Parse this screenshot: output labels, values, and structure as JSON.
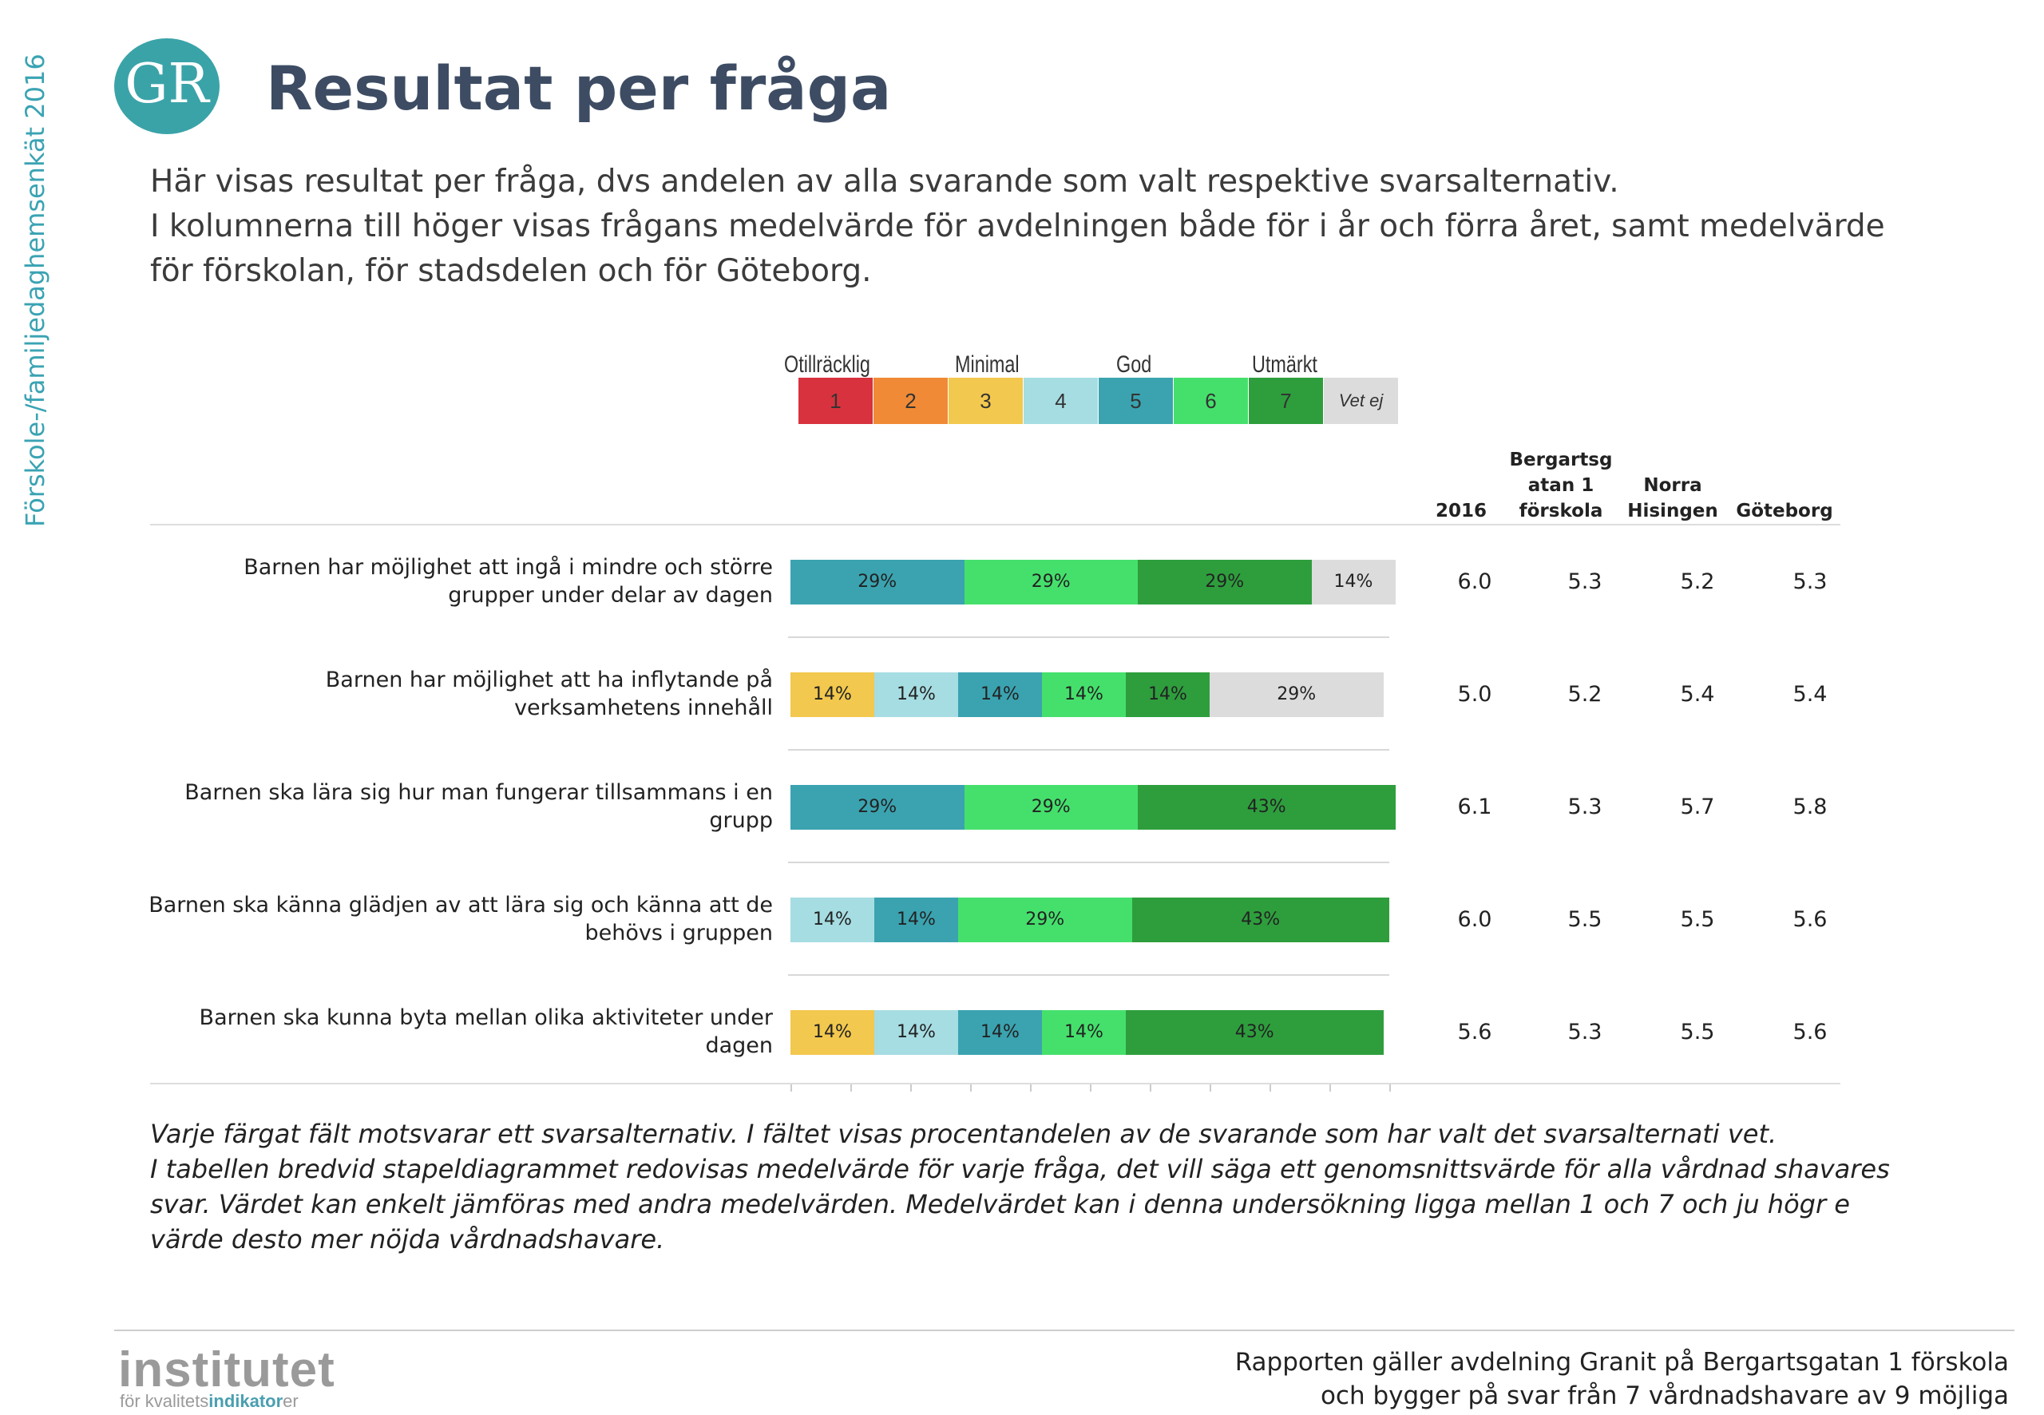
{
  "side_label": "Förskole-/familjedaghemsenkät 2016",
  "logo": "GR",
  "title": "Resultat per fråga",
  "intro": [
    "Här visas resultat per fråga, dvs andelen av alla svarande som valt respektive svarsalternativ.",
    "I kolumnerna till höger visas frågans medelvärde för avdelningen både för i år och förra året, samt medelvärde",
    "för förskolan, för stadsdelen och för Göteborg."
  ],
  "scale": {
    "labels": [
      "Otillräcklig",
      "Minimal",
      "God",
      "Utmärkt"
    ],
    "options": [
      "1",
      "2",
      "3",
      "4",
      "5",
      "6",
      "7",
      "Vet ej"
    ],
    "colors": [
      "#d7323e",
      "#f08a36",
      "#f2c84e",
      "#a6dde2",
      "#3ba3b0",
      "#45e06c",
      "#2e9e3d",
      "#dcdcdc"
    ]
  },
  "columns": [
    "2016",
    "Bergartsgatan 1 förskola",
    "Norra Hisingen",
    "Göteborg"
  ],
  "column_display": [
    [
      "2016"
    ],
    [
      "Bergartsg",
      "atan 1",
      "förskola"
    ],
    [
      "Norra",
      "Hisingen"
    ],
    [
      "Göteborg"
    ]
  ],
  "chart_data": {
    "type": "bar",
    "stacked": true,
    "orientation": "horizontal",
    "categories": [
      "Barnen har möjlighet att ingå i mindre och större grupper under delar av dagen",
      "Barnen har möjlighet att ha inflytande på verksamhetens innehåll",
      "Barnen ska lära sig hur man fungerar tillsammans i en grupp",
      "Barnen ska känna glädjen av att lära sig och känna att de behövs i gruppen",
      "Barnen ska kunna byta mellan olika aktiviteter under dagen"
    ],
    "category_lines": [
      [
        "Barnen har möjlighet att ingå i mindre och större",
        "grupper under delar av dagen"
      ],
      [
        "Barnen har möjlighet att ha inflytande på",
        "verksamhetens innehåll"
      ],
      [
        "Barnen ska lära sig hur man fungerar tillsammans i en",
        "grupp"
      ],
      [
        "Barnen ska känna glädjen av att lära sig och känna att de",
        "behövs i gruppen"
      ],
      [
        "Barnen ska kunna byta mellan olika aktiviteter under",
        "dagen"
      ]
    ],
    "series": [
      {
        "name": "1",
        "values": [
          0,
          0,
          0,
          0,
          0
        ]
      },
      {
        "name": "2",
        "values": [
          0,
          0,
          0,
          0,
          0
        ]
      },
      {
        "name": "3",
        "values": [
          0,
          14,
          0,
          0,
          14
        ]
      },
      {
        "name": "4",
        "values": [
          0,
          14,
          0,
          14,
          14
        ]
      },
      {
        "name": "5",
        "values": [
          29,
          14,
          29,
          14,
          14
        ]
      },
      {
        "name": "6",
        "values": [
          29,
          14,
          29,
          29,
          14
        ]
      },
      {
        "name": "7",
        "values": [
          29,
          14,
          43,
          43,
          43
        ]
      },
      {
        "name": "Vet ej",
        "values": [
          14,
          29,
          0,
          0,
          0
        ]
      }
    ],
    "unit": "%",
    "xlim": [
      0,
      100
    ],
    "means": [
      [
        6.0,
        5.3,
        5.2,
        5.3
      ],
      [
        5.0,
        5.2,
        5.4,
        5.4
      ],
      [
        6.1,
        5.3,
        5.7,
        5.8
      ],
      [
        6.0,
        5.5,
        5.5,
        5.6
      ],
      [
        5.6,
        5.3,
        5.5,
        5.6
      ]
    ]
  },
  "footnote": [
    "Varje färgat fält motsvarar ett svarsalternativ. I fältet visas procentandelen av de svarande som har valt det svarsalternati vet.",
    "I tabellen bredvid stapeldiagrammet redovisas medelvärde för varje fråga, det vill säga ett genomsnittsvärde för alla vårdnad shavares",
    "svar. Värdet kan enkelt jämföras med andra medelvärden. Medelvärdet kan i denna undersökning ligga mellan 1 och 7 och ju högr e",
    "värde desto mer nöjda vårdnadshavare."
  ],
  "institute": {
    "name": "institutet",
    "tag_prefix": "för kvalitets",
    "tag_highlight": "indikator",
    "tag_suffix": "er"
  },
  "report": [
    "Rapporten gäller avdelning Granit  på Bergartsgatan 1 förskola",
    "och bygger på svar från 7 vårdnadshavare av 9 möjliga"
  ]
}
